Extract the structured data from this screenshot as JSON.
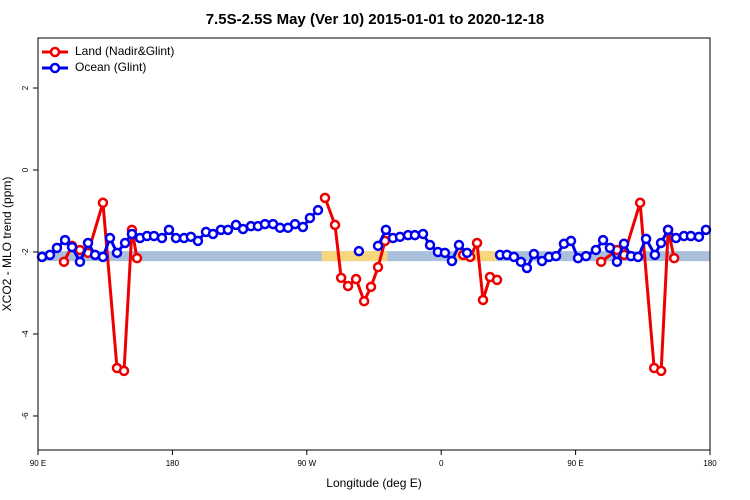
{
  "chart_data": {
    "type": "line",
    "title": "7.5S-2.5S May (Ver 10)   2015-01-01 to 2020-12-18",
    "x_label": "Longitude (deg E)",
    "y_label": "XCO2 - MLO trend (ppm)",
    "xlim": [
      90,
      540
    ],
    "ylim": [
      -6.83,
      3.22
    ],
    "xticks": [
      {
        "value": 90,
        "label": "90 E"
      },
      {
        "value": 180,
        "label": "180"
      },
      {
        "value": 270,
        "label": "90 W"
      },
      {
        "value": 360,
        "label": "0"
      },
      {
        "value": 450,
        "label": "90 E"
      },
      {
        "value": 540,
        "label": "180"
      }
    ],
    "yticks": [
      2,
      0,
      -2,
      -4,
      -6
    ],
    "legend": "top-left",
    "bands": [
      {
        "color": "#a9bfdc",
        "value": -2.1,
        "xlim": [
          90,
          540
        ]
      },
      {
        "color": "#f7d77c",
        "value": -2.1,
        "xlim": [
          280,
          324
        ]
      },
      {
        "color": "#f7d77c",
        "value": -2.1,
        "xlim": [
          369,
          397
        ]
      }
    ],
    "series": [
      {
        "name": "Land (Nadir&Glint)",
        "color": "#ee0000",
        "x": [
          107.4,
          112.8,
          118.1,
          123.5,
          133.5,
          142.9,
          147.6,
          152.9,
          156.3,
          null,
          282.2,
          288.9,
          293.0,
          297.6,
          303.0,
          308.4,
          313.0,
          317.7,
          322.4,
          null,
          374.7,
          379.4,
          384.0,
          388.0,
          392.7,
          397.4,
          null,
          467.1,
          477.8,
          482.5,
          493.2,
          502.6,
          507.3,
          512.0,
          516.0
        ],
        "values": [
          -2.24,
          -1.85,
          -1.95,
          -2.02,
          -0.8,
          -4.83,
          -4.9,
          -1.46,
          -2.15,
          null,
          -0.68,
          -1.34,
          -2.63,
          -2.83,
          -2.66,
          -3.2,
          -2.85,
          -2.37,
          -1.73,
          null,
          -2.07,
          -2.12,
          -1.78,
          -3.17,
          -2.61,
          -2.68,
          null,
          -2.24,
          -1.95,
          -2.07,
          -0.8,
          -4.83,
          -4.9,
          -1.46,
          -2.15
        ]
      },
      {
        "name": "Ocean (Glint)",
        "color": "#0000ee",
        "x": [
          92.7,
          98.0,
          102.7,
          108.1,
          112.8,
          118.1,
          123.5,
          128.2,
          133.5,
          138.2,
          142.9,
          148.3,
          152.9,
          158.3,
          163.0,
          167.7,
          173.0,
          177.7,
          182.4,
          187.8,
          192.4,
          197.1,
          202.5,
          207.2,
          212.5,
          217.2,
          222.6,
          227.3,
          232.6,
          237.3,
          242.0,
          247.4,
          252.1,
          257.4,
          262.1,
          267.4,
          272.1,
          277.5,
          null,
          304.9,
          null,
          317.7,
          323.0,
          327.7,
          332.4,
          337.8,
          342.4,
          347.8,
          352.5,
          357.8,
          362.5,
          367.2,
          371.9,
          377.3,
          null,
          399.4,
          404.0,
          408.7,
          413.4,
          417.4,
          422.1,
          427.5,
          432.2,
          436.9,
          442.2,
          446.9,
          451.6,
          457.0,
          463.6,
          468.4,
          473.0,
          477.7,
          482.4,
          487.1,
          491.8,
          497.2,
          503.1,
          507.2,
          511.9,
          517.2,
          522.6,
          527.2,
          532.6,
          537.3
        ],
        "values": [
          -2.12,
          -2.07,
          -1.9,
          -1.71,
          -1.88,
          -2.24,
          -1.78,
          -2.07,
          -2.12,
          -1.66,
          -2.02,
          -1.78,
          -1.56,
          -1.66,
          -1.61,
          -1.61,
          -1.66,
          -1.46,
          -1.66,
          -1.66,
          -1.63,
          -1.73,
          -1.51,
          -1.56,
          -1.46,
          -1.46,
          -1.34,
          -1.44,
          -1.37,
          -1.37,
          -1.32,
          -1.32,
          -1.41,
          -1.41,
          -1.32,
          -1.39,
          -1.17,
          -0.98,
          null,
          -1.98,
          null,
          -1.85,
          -1.46,
          -1.66,
          -1.63,
          -1.59,
          -1.59,
          -1.56,
          -1.83,
          -2.0,
          -2.02,
          -2.22,
          -1.83,
          -2.02,
          null,
          -2.07,
          -2.07,
          -2.12,
          -2.24,
          -2.39,
          -2.05,
          -2.22,
          -2.12,
          -2.1,
          -1.8,
          -1.73,
          -2.15,
          -2.1,
          -1.95,
          -1.71,
          -1.9,
          -2.24,
          -1.8,
          -2.1,
          -2.12,
          -1.68,
          -2.07,
          -1.78,
          -1.46,
          -1.66,
          -1.61,
          -1.61,
          -1.63,
          -1.46
        ]
      }
    ]
  }
}
